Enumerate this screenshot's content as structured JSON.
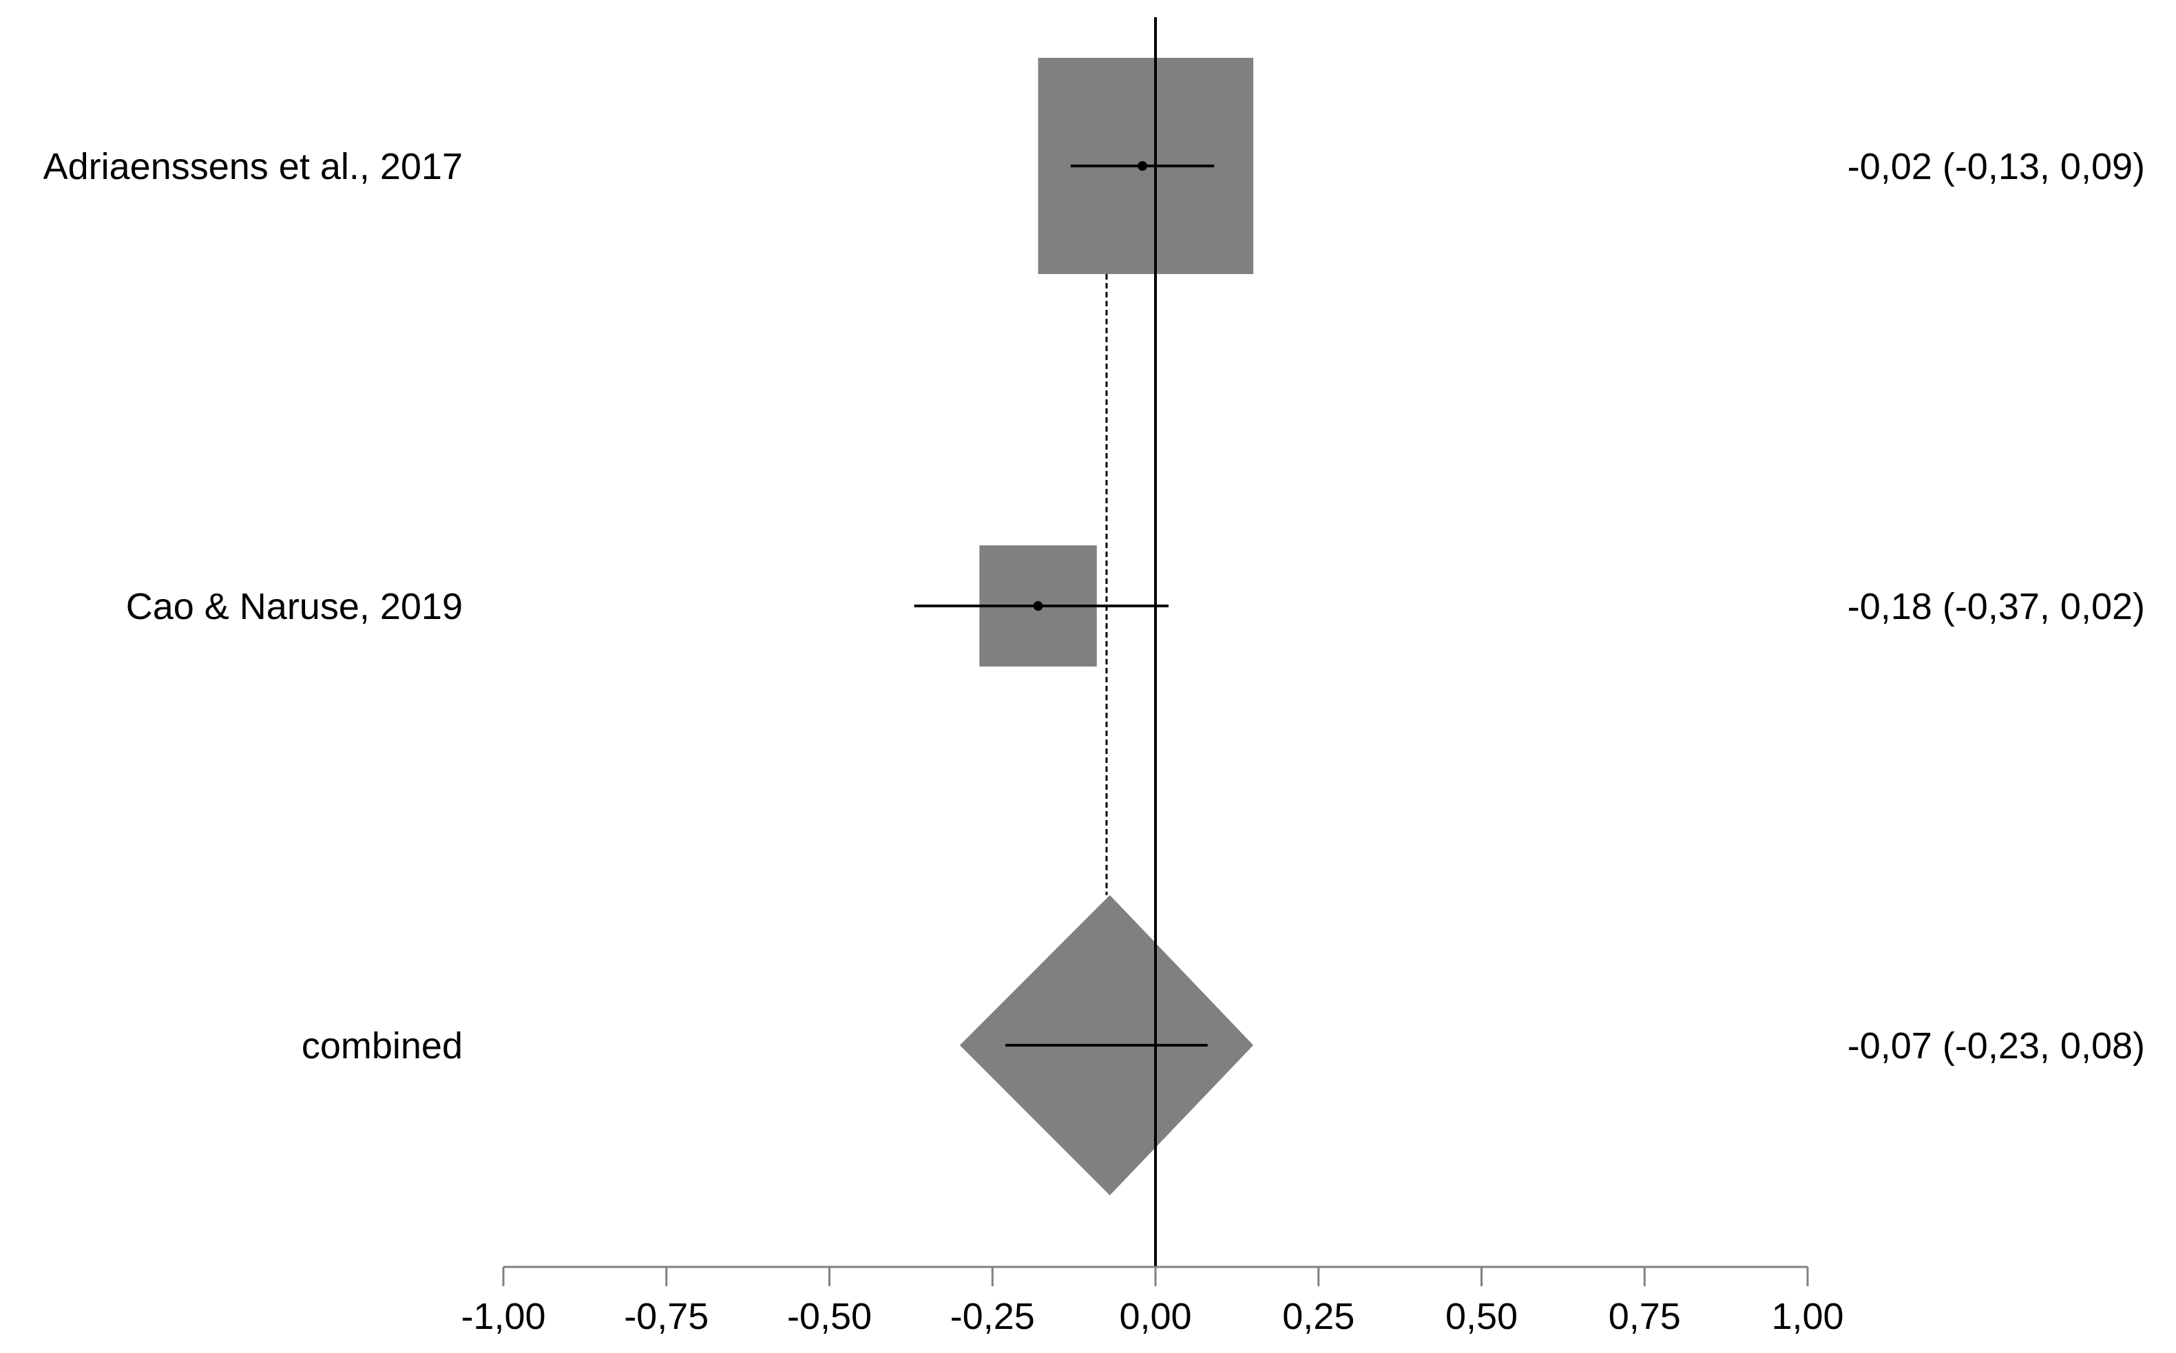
{
  "chart_data": {
    "type": "forest",
    "title": "",
    "xlabel": "",
    "ylabel": "",
    "xlim": [
      -1,
      1
    ],
    "x_ticks": [
      -1,
      -0.75,
      -0.5,
      -0.25,
      0,
      0.25,
      0.5,
      0.75,
      1
    ],
    "x_tick_labels": [
      "-1,00",
      "-0,75",
      "-0,50",
      "-0,25",
      "0,00",
      "0,25",
      "0,50",
      "0,75",
      "1,00"
    ],
    "reference_line": 0,
    "pooled_line": -0.075,
    "studies": [
      {
        "name": "Adriaenssens et al., 2017",
        "estimate": -0.02,
        "ci_low": -0.13,
        "ci_high": 0.09,
        "weight_box": [
          -0.18,
          0.15
        ],
        "label": "-0,02 (-0,13, 0,09)"
      },
      {
        "name": "Cao & Naruse, 2019",
        "estimate": -0.18,
        "ci_low": -0.37,
        "ci_high": 0.02,
        "weight_box": [
          -0.27,
          -0.09
        ],
        "label": "-0,18 (-0,37, 0,02)"
      }
    ],
    "combined": {
      "name": "combined",
      "estimate": -0.07,
      "ci_low": -0.23,
      "ci_high": 0.08,
      "diamond": [
        -0.3,
        0.15
      ],
      "label": "-0,07 (-0,23, 0,08)"
    },
    "colors": {
      "box": "#808080",
      "line": "#000000",
      "axis": "#808080"
    }
  }
}
